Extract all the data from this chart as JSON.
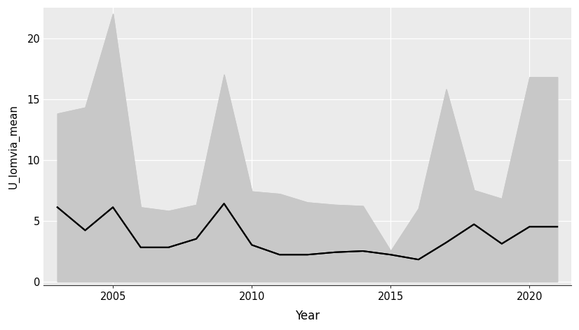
{
  "years": [
    2003,
    2004,
    2005,
    2006,
    2007,
    2008,
    2009,
    2010,
    2011,
    2012,
    2013,
    2014,
    2015,
    2016,
    2017,
    2018,
    2019,
    2020,
    2021
  ],
  "mean": [
    6.1,
    4.2,
    6.1,
    2.8,
    2.8,
    3.5,
    6.4,
    3.0,
    2.2,
    2.2,
    2.4,
    2.5,
    2.2,
    1.8,
    3.2,
    4.7,
    3.1,
    4.5,
    4.5
  ],
  "upper": [
    13.8,
    14.3,
    22.0,
    6.1,
    5.8,
    6.3,
    17.0,
    7.4,
    7.2,
    6.5,
    6.3,
    6.2,
    2.5,
    6.0,
    15.8,
    7.5,
    6.8,
    16.8,
    16.8
  ],
  "lower": [
    0.0,
    0.0,
    0.0,
    0.0,
    0.0,
    0.0,
    0.0,
    0.0,
    0.0,
    0.0,
    0.0,
    0.0,
    0.0,
    0.0,
    0.0,
    0.0,
    0.0,
    0.0,
    0.0
  ],
  "ylabel": "U_lomvia_mean",
  "xlabel": "Year",
  "ylim": [
    -0.3,
    22.5
  ],
  "yticks": [
    0,
    5,
    10,
    15,
    20
  ],
  "xticks": [
    2005,
    2010,
    2015,
    2020
  ],
  "xlim": [
    2002.5,
    2021.5
  ],
  "fill_color": "#c8c8c8",
  "line_color": "#000000",
  "background_color": "#ffffff",
  "panel_background": "#ffffff",
  "grid_color": "#ffffff",
  "line_width": 1.5
}
